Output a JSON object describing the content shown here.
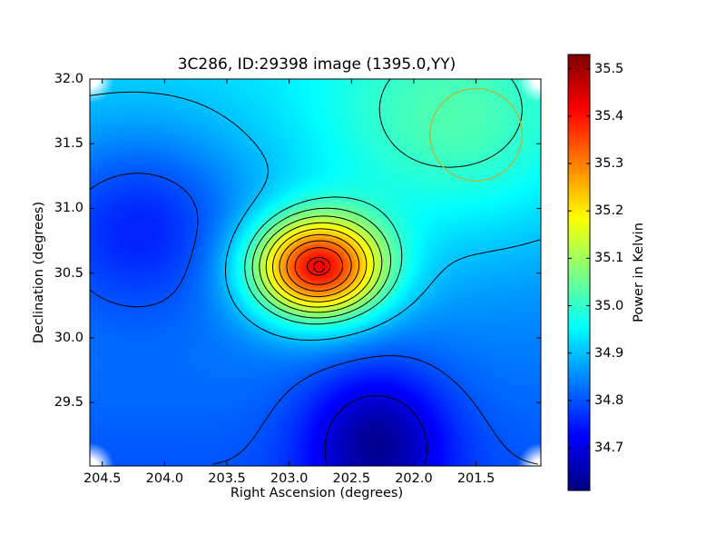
{
  "chart_data": {
    "type": "heatmap",
    "title": "3C286, ID:29398 image (1395.0,YY)",
    "xlabel": "Right Ascension (degrees)",
    "ylabel": "Declination (degrees)",
    "xlim": [
      204.6,
      200.98
    ],
    "ylim": [
      29.01,
      32.0
    ],
    "x_ticks": [
      "204.5",
      "204.0",
      "203.5",
      "203.0",
      "202.5",
      "202.0",
      "201.5"
    ],
    "y_ticks": [
      "29.5",
      "30.0",
      "30.5",
      "31.0",
      "31.5",
      "32.0"
    ],
    "colorbar": {
      "label": "Power in Kelvin",
      "range": [
        34.61,
        35.53
      ],
      "ticks": [
        "34.7",
        "34.8",
        "34.9",
        "35.0",
        "35.1",
        "35.2",
        "35.3",
        "35.4",
        "35.5"
      ],
      "colormap": "jet"
    },
    "peak": {
      "ra": 202.76,
      "dec": 30.55,
      "value": 35.53
    },
    "features": [
      {
        "kind": "gaussian",
        "ra": 202.77,
        "dec": 30.54,
        "sigma_ra": 0.38,
        "sigma_dec": 0.28,
        "amp": 0.55
      },
      {
        "kind": "gaussian",
        "ra": 201.7,
        "dec": 31.6,
        "sigma_ra": 0.8,
        "sigma_dec": 0.6,
        "amp": 0.12
      },
      {
        "kind": "gaussian",
        "ra": 202.3,
        "dec": 29.2,
        "sigma_ra": 0.4,
        "sigma_dec": 0.4,
        "amp": -0.18
      },
      {
        "kind": "gaussian",
        "ra": 204.2,
        "dec": 30.9,
        "sigma_ra": 0.6,
        "sigma_dec": 0.5,
        "amp": -0.12
      }
    ],
    "background_level": 34.86,
    "contour_levels": [
      34.7,
      34.8,
      34.9,
      35.0,
      35.05,
      35.1,
      35.15,
      35.2,
      35.25,
      35.3,
      35.35,
      35.4,
      35.45,
      35.5
    ],
    "beam_circle": {
      "ra": 201.5,
      "dec": 31.57,
      "radius_deg": 0.37,
      "color": "#b5b53a"
    },
    "grid": false
  }
}
